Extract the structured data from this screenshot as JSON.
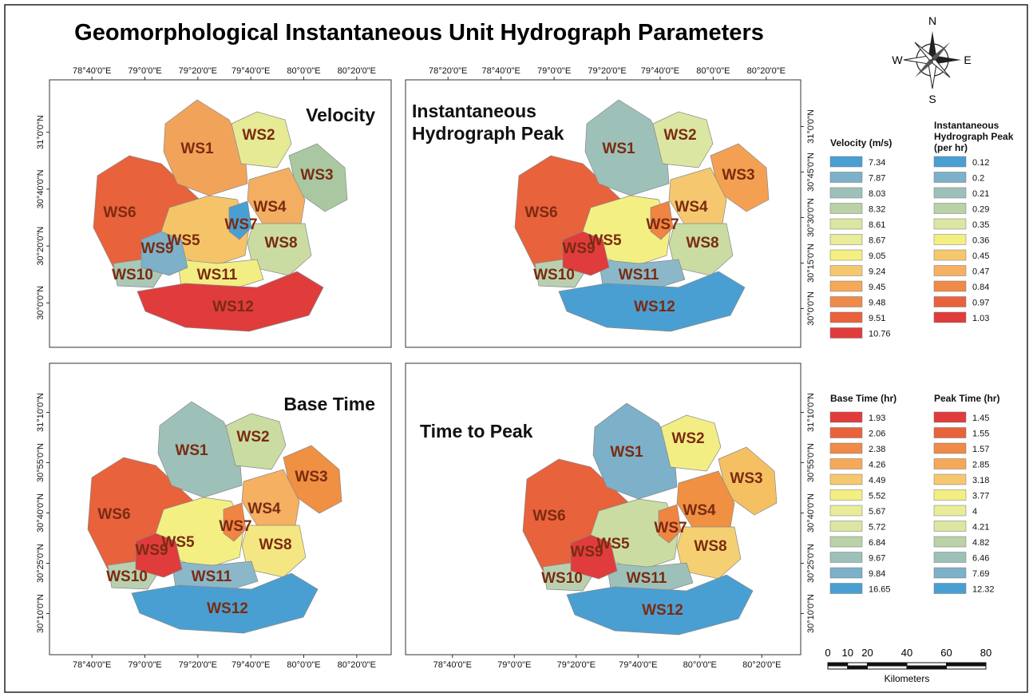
{
  "title": "Geomorphological Instantaneous Unit Hydrograph Parameters",
  "compass": {
    "n": "N",
    "s": "S",
    "e": "E",
    "w": "W"
  },
  "panels": [
    {
      "title": "Velocity",
      "top_ticks": [
        "78°40'0\"E",
        "79°0'0\"E",
        "79°20'0\"E",
        "79°40'0\"E",
        "80°0'0\"E",
        "80°20'0\"E"
      ],
      "left_ticks": [
        "31°0'0\"N",
        "30°40'0\"N",
        "30°20'0\"N",
        "30°0'0\"N"
      ],
      "watersheds": [
        {
          "label": "WS1",
          "color": "#f2a35a"
        },
        {
          "label": "WS2",
          "color": "#e6ea95"
        },
        {
          "label": "WS3",
          "color": "#a9c8a2"
        },
        {
          "label": "WS4",
          "color": "#f4ae62"
        },
        {
          "label": "WS5",
          "color": "#f5c468"
        },
        {
          "label": "WS6",
          "color": "#e8623c"
        },
        {
          "label": "WS7",
          "color": "#4a9fd2"
        },
        {
          "label": "WS8",
          "color": "#cadca2"
        },
        {
          "label": "WS9",
          "color": "#7db0c9"
        },
        {
          "label": "WS10",
          "color": "#a9c8b8"
        },
        {
          "label": "WS11",
          "color": "#f2ee84"
        },
        {
          "label": "WS12",
          "color": "#e03c3c"
        }
      ]
    },
    {
      "title": "Instantaneous Hydrograph Peak",
      "top_ticks": [
        "78°20'0\"E",
        "78°40'0\"E",
        "79°0'0\"E",
        "79°20'0\"E",
        "79°40'0\"E",
        "80°0'0\"E",
        "80°20'0\"E"
      ],
      "right_ticks": [
        "31°0'0\"N",
        "30°45'0\"N",
        "30°30'0\"N",
        "30°15'0\"N",
        "30°0'0\"N"
      ],
      "watersheds": [
        {
          "label": "WS1",
          "color": "#9dc1b9"
        },
        {
          "label": "WS2",
          "color": "#dbe6a2"
        },
        {
          "label": "WS3",
          "color": "#f4a052"
        },
        {
          "label": "WS4",
          "color": "#f5c870"
        },
        {
          "label": "WS5",
          "color": "#f4ef82"
        },
        {
          "label": "WS6",
          "color": "#e8623c"
        },
        {
          "label": "WS7",
          "color": "#f08442"
        },
        {
          "label": "WS8",
          "color": "#cadca2"
        },
        {
          "label": "WS9",
          "color": "#e03c3c"
        },
        {
          "label": "WS10",
          "color": "#b9d0b0"
        },
        {
          "label": "WS11",
          "color": "#8bb8c9"
        },
        {
          "label": "WS12",
          "color": "#4a9fd2"
        }
      ]
    },
    {
      "title": "Base Time",
      "left_ticks": [
        "31°10'0\"N",
        "30°55'0\"N",
        "30°40'0\"N",
        "30°25'0\"N",
        "30°10'0\"N"
      ],
      "bottom_ticks": [
        "78°40'0\"E",
        "79°0'0\"E",
        "79°20'0\"E",
        "79°40'0\"E",
        "80°0'0\"E",
        "80°20'0\"E"
      ],
      "watersheds": [
        {
          "label": "WS1",
          "color": "#9dc1b9"
        },
        {
          "label": "WS2",
          "color": "#cadca2"
        },
        {
          "label": "WS3",
          "color": "#f09042"
        },
        {
          "label": "WS4",
          "color": "#f5b062"
        },
        {
          "label": "WS5",
          "color": "#f4ef82"
        },
        {
          "label": "WS6",
          "color": "#e8623c"
        },
        {
          "label": "WS7",
          "color": "#f08442"
        },
        {
          "label": "WS8",
          "color": "#f4e682"
        },
        {
          "label": "WS9",
          "color": "#e03c3c"
        },
        {
          "label": "WS10",
          "color": "#b9d0b0"
        },
        {
          "label": "WS11",
          "color": "#8bb8c9"
        },
        {
          "label": "WS12",
          "color": "#4a9fd2"
        }
      ]
    },
    {
      "title": "Time to Peak",
      "right_ticks": [
        "31°10'0\"N",
        "30°55'0\"N",
        "30°40'0\"N",
        "30°25'0\"N",
        "30°10'0\"N"
      ],
      "bottom_ticks": [
        "78°40'0\"E",
        "79°0'0\"E",
        "79°20'0\"E",
        "79°40'0\"E",
        "80°0'0\"E",
        "80°20'0\"E"
      ],
      "watersheds": [
        {
          "label": "WS1",
          "color": "#7db0c9"
        },
        {
          "label": "WS2",
          "color": "#f2ee84"
        },
        {
          "label": "WS3",
          "color": "#f5c062"
        },
        {
          "label": "WS4",
          "color": "#f09042"
        },
        {
          "label": "WS5",
          "color": "#cadca2"
        },
        {
          "label": "WS6",
          "color": "#e8623c"
        },
        {
          "label": "WS7",
          "color": "#f08442"
        },
        {
          "label": "WS8",
          "color": "#f5d072"
        },
        {
          "label": "WS9",
          "color": "#e03c3c"
        },
        {
          "label": "WS10",
          "color": "#b9d0b0"
        },
        {
          "label": "WS11",
          "color": "#9dc1b9"
        },
        {
          "label": "WS12",
          "color": "#4a9fd2"
        }
      ]
    }
  ],
  "legends": [
    {
      "title": "Velocity (m/s)",
      "items": [
        {
          "value": 7.34,
          "color": "#4a9fd2"
        },
        {
          "value": 7.87,
          "color": "#7db0c9"
        },
        {
          "value": 8.03,
          "color": "#9dc1b9"
        },
        {
          "value": 8.32,
          "color": "#b9d2a8"
        },
        {
          "value": 8.61,
          "color": "#dbe6a2"
        },
        {
          "value": 8.67,
          "color": "#e9ec98"
        },
        {
          "value": 9.05,
          "color": "#f4ef82"
        },
        {
          "value": 9.24,
          "color": "#f5c870"
        },
        {
          "value": 9.45,
          "color": "#f5a858"
        },
        {
          "value": 9.48,
          "color": "#f08a48"
        },
        {
          "value": 9.51,
          "color": "#e8623c"
        },
        {
          "value": 10.76,
          "color": "#e03c3c"
        }
      ]
    },
    {
      "title": "Instantaneous Hydrograph Peak (per hr)",
      "items": [
        {
          "value": 0.12,
          "color": "#4a9fd2"
        },
        {
          "value": 0.2,
          "color": "#7db0c9"
        },
        {
          "value": 0.21,
          "color": "#9dc1b9"
        },
        {
          "value": 0.29,
          "color": "#b9d2a8"
        },
        {
          "value": 0.35,
          "color": "#dbe6a2"
        },
        {
          "value": 0.36,
          "color": "#f4ef82"
        },
        {
          "value": 0.45,
          "color": "#f5c870"
        },
        {
          "value": 0.47,
          "color": "#f5b062"
        },
        {
          "value": 0.84,
          "color": "#f08a48"
        },
        {
          "value": 0.97,
          "color": "#e8623c"
        },
        {
          "value": 1.03,
          "color": "#e03c3c"
        }
      ]
    },
    {
      "title": "Base Time (hr)",
      "items": [
        {
          "value": 1.93,
          "color": "#e03c3c"
        },
        {
          "value": 2.06,
          "color": "#e8623c"
        },
        {
          "value": 2.38,
          "color": "#f08a48"
        },
        {
          "value": 4.26,
          "color": "#f5a858"
        },
        {
          "value": 4.49,
          "color": "#f5c870"
        },
        {
          "value": 5.52,
          "color": "#f4ef82"
        },
        {
          "value": 5.67,
          "color": "#e9ec98"
        },
        {
          "value": 5.72,
          "color": "#dbe6a2"
        },
        {
          "value": 6.84,
          "color": "#b9d2a8"
        },
        {
          "value": 9.67,
          "color": "#9dc1b9"
        },
        {
          "value": 9.84,
          "color": "#7db0c9"
        },
        {
          "value": 16.65,
          "color": "#4a9fd2"
        }
      ]
    },
    {
      "title": "Peak Time (hr)",
      "items": [
        {
          "value": 1.45,
          "color": "#e03c3c"
        },
        {
          "value": 1.55,
          "color": "#e8623c"
        },
        {
          "value": 1.57,
          "color": "#f08a48"
        },
        {
          "value": 2.85,
          "color": "#f5a858"
        },
        {
          "value": 3.18,
          "color": "#f5c870"
        },
        {
          "value": 3.77,
          "color": "#f4ef82"
        },
        {
          "value": 4,
          "color": "#e9ec98"
        },
        {
          "value": 4.21,
          "color": "#dbe6a2"
        },
        {
          "value": 4.82,
          "color": "#b9d2a8"
        },
        {
          "value": 6.46,
          "color": "#9dc1b9"
        },
        {
          "value": 7.69,
          "color": "#7db0c9"
        },
        {
          "value": 12.32,
          "color": "#4a9fd2"
        }
      ]
    }
  ],
  "scale_bar": {
    "ticks": [
      0,
      10,
      20,
      40,
      60,
      80
    ],
    "unit": "Kilometers"
  }
}
